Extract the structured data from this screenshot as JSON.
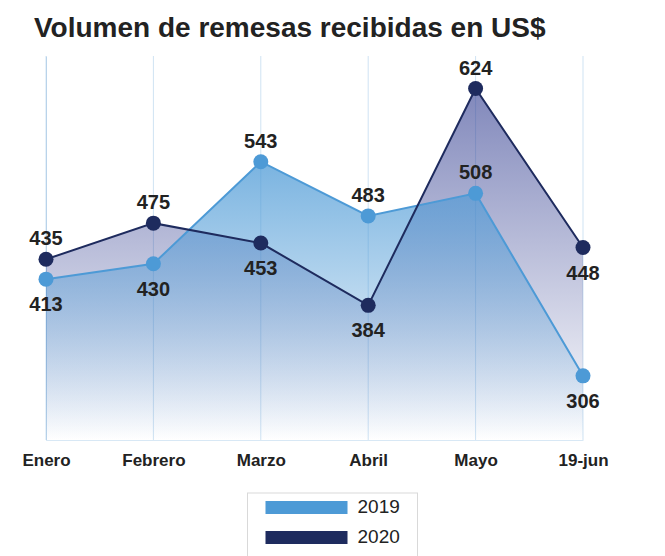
{
  "chart_data": {
    "type": "line",
    "title": "Volumen de remesas recibidas en US$",
    "categories": [
      "Enero",
      "Febrero",
      "Marzo",
      "Abril",
      "Mayo",
      "19-jun"
    ],
    "series": [
      {
        "name": "2019",
        "color": "#4d9ad6",
        "values": [
          413,
          430,
          543,
          483,
          508,
          306
        ]
      },
      {
        "name": "2020",
        "color": "#1e2b5e",
        "values": [
          435,
          475,
          453,
          384,
          624,
          448
        ]
      }
    ],
    "ylim": [
      235,
      660
    ],
    "grid": true,
    "legend": "bottom",
    "data_labels": true,
    "tick_labels": "x",
    "marker": "circle"
  }
}
